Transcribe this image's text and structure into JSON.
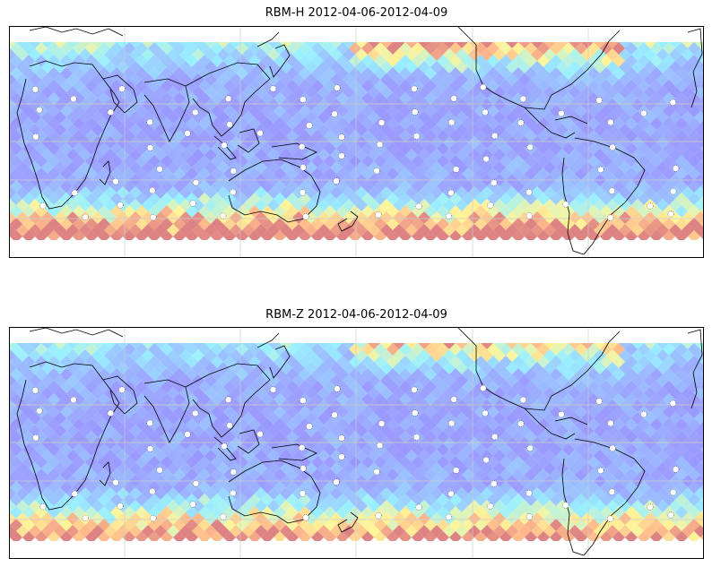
{
  "panels": [
    {
      "title": "RBM-H 2012-04-06-2012-04-09",
      "field": "RBM-H",
      "date_start": "2012-04-06",
      "date_end": "2012-04-09",
      "colormap": "jet",
      "alpha": 0.6,
      "high_latitude_values": "high",
      "south_band_intensity": 1.0,
      "north_band_intensity": 0.85
    },
    {
      "title": "RBM-Z 2012-04-06-2012-04-09",
      "field": "RBM-Z",
      "date_start": "2012-04-06",
      "date_end": "2012-04-09",
      "colormap": "jet",
      "alpha": 0.6,
      "high_latitude_values": "moderate",
      "south_band_intensity": 0.65,
      "north_band_intensity": 0.45
    }
  ],
  "map": {
    "projection": "mercator",
    "coastlines": true,
    "gridlines": true,
    "station_marker": "white-dot"
  },
  "colors": {
    "low": "#5a5aff",
    "mid": "#55e6ff",
    "high": "#ffee55",
    "max": "#c83030",
    "coast": "#000000",
    "grid": "#cccccc"
  }
}
